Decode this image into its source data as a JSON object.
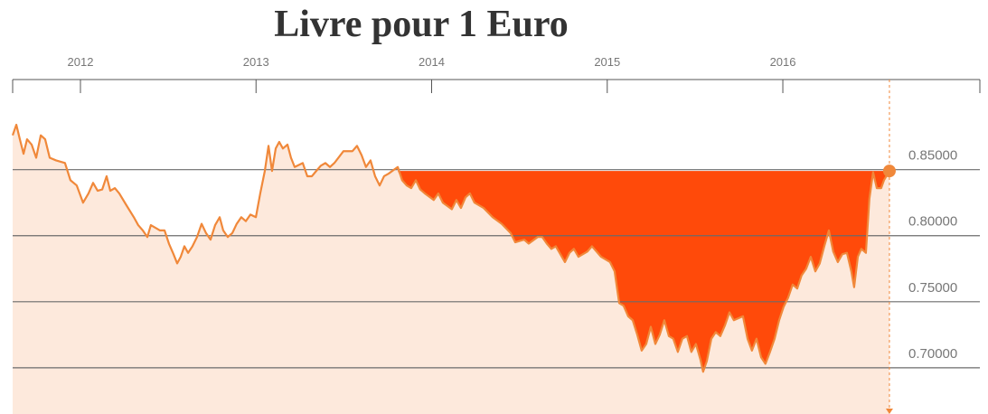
{
  "chart_data": {
    "type": "line",
    "title": "Livre pour 1 Euro",
    "x": [
      2011.614,
      2011.635,
      2011.655,
      2011.676,
      2011.696,
      2011.722,
      2011.748,
      2011.774,
      2011.799,
      2011.825,
      2011.861,
      2011.912,
      2011.943,
      2011.979,
      2012.015,
      2012.046,
      2012.072,
      2012.098,
      2012.124,
      2012.149,
      2012.17,
      2012.196,
      2012.221,
      2012.262,
      2012.304,
      2012.329,
      2012.355,
      2012.381,
      2012.401,
      2012.453,
      2012.479,
      2012.504,
      2012.53,
      2012.551,
      2012.571,
      2012.592,
      2012.613,
      2012.638,
      2012.664,
      2012.69,
      2012.715,
      2012.741,
      2012.767,
      2012.793,
      2012.813,
      2012.839,
      2012.865,
      2012.89,
      2012.916,
      2012.942,
      2012.968,
      2012.999,
      2013.024,
      2013.05,
      2013.071,
      2013.091,
      2013.112,
      2013.132,
      2013.153,
      2013.179,
      2013.199,
      2013.22,
      2013.266,
      2013.292,
      2013.318,
      2013.343,
      2013.369,
      2013.395,
      2013.421,
      2013.446,
      2013.498,
      2013.549,
      2013.575,
      2013.601,
      2013.626,
      2013.652,
      2013.678,
      2013.704,
      2013.729,
      2013.755,
      2013.807,
      2013.832,
      2013.858,
      2013.884,
      2013.91,
      2013.935,
      2013.961,
      2014.012,
      2014.038,
      2014.064,
      2014.115,
      2014.141,
      2014.167,
      2014.193,
      2014.218,
      2014.244,
      2014.296,
      2014.347,
      2014.399,
      2014.45,
      2014.476,
      2014.527,
      2014.553,
      2014.604,
      2014.63,
      2014.656,
      2014.682,
      2014.707,
      2014.733,
      2014.759,
      2014.785,
      2014.81,
      2014.836,
      2014.887,
      2014.913,
      2014.939,
      2014.965,
      2015.016,
      2015.042,
      2015.068,
      2015.093,
      2015.119,
      2015.145,
      2015.171,
      2015.196,
      2015.222,
      2015.248,
      2015.274,
      2015.299,
      2015.325,
      2015.351,
      2015.376,
      2015.402,
      2015.428,
      2015.454,
      2015.479,
      2015.505,
      2015.531,
      2015.546,
      2015.567,
      2015.593,
      2015.618,
      2015.644,
      2015.67,
      2015.696,
      2015.721,
      2015.773,
      2015.799,
      2015.824,
      2015.85,
      2015.876,
      2015.901,
      2015.927,
      2015.953,
      2015.979,
      2016.004,
      2016.03,
      2016.056,
      2016.082,
      2016.107,
      2016.133,
      2016.159,
      2016.185,
      2016.21,
      2016.236,
      2016.262,
      2016.287,
      2016.313,
      2016.339,
      2016.365,
      2016.39,
      2016.406,
      2016.427,
      2016.447,
      2016.473,
      2016.493,
      2016.514,
      2016.535,
      2016.56,
      2016.576,
      2016.607
    ],
    "values": [
      0.876,
      0.884,
      0.873,
      0.862,
      0.873,
      0.869,
      0.859,
      0.876,
      0.873,
      0.859,
      0.857,
      0.855,
      0.842,
      0.838,
      0.825,
      0.832,
      0.84,
      0.834,
      0.835,
      0.845,
      0.834,
      0.836,
      0.832,
      0.823,
      0.814,
      0.808,
      0.804,
      0.799,
      0.808,
      0.804,
      0.804,
      0.794,
      0.786,
      0.779,
      0.784,
      0.792,
      0.787,
      0.792,
      0.799,
      0.809,
      0.802,
      0.797,
      0.808,
      0.814,
      0.804,
      0.799,
      0.802,
      0.809,
      0.814,
      0.811,
      0.816,
      0.814,
      0.832,
      0.849,
      0.868,
      0.849,
      0.866,
      0.871,
      0.866,
      0.869,
      0.859,
      0.852,
      0.855,
      0.845,
      0.845,
      0.849,
      0.853,
      0.855,
      0.852,
      0.855,
      0.864,
      0.864,
      0.868,
      0.861,
      0.852,
      0.857,
      0.845,
      0.838,
      0.845,
      0.847,
      0.852,
      0.842,
      0.838,
      0.836,
      0.842,
      0.835,
      0.832,
      0.827,
      0.832,
      0.825,
      0.82,
      0.827,
      0.821,
      0.829,
      0.832,
      0.825,
      0.821,
      0.814,
      0.809,
      0.802,
      0.795,
      0.797,
      0.794,
      0.799,
      0.799,
      0.794,
      0.79,
      0.792,
      0.786,
      0.78,
      0.787,
      0.79,
      0.784,
      0.788,
      0.792,
      0.788,
      0.784,
      0.78,
      0.773,
      0.749,
      0.747,
      0.739,
      0.736,
      0.725,
      0.713,
      0.718,
      0.731,
      0.718,
      0.725,
      0.736,
      0.724,
      0.722,
      0.712,
      0.722,
      0.724,
      0.712,
      0.718,
      0.706,
      0.697,
      0.705,
      0.722,
      0.727,
      0.724,
      0.732,
      0.742,
      0.736,
      0.739,
      0.722,
      0.713,
      0.722,
      0.708,
      0.703,
      0.712,
      0.722,
      0.736,
      0.746,
      0.753,
      0.763,
      0.76,
      0.77,
      0.775,
      0.784,
      0.773,
      0.779,
      0.792,
      0.804,
      0.788,
      0.78,
      0.786,
      0.787,
      0.773,
      0.761,
      0.784,
      0.79,
      0.787,
      0.828,
      0.848,
      0.836,
      0.836,
      0.842,
      0.849
    ],
    "xlim": [
      2011.614,
      2017.122
    ],
    "xticks": [
      2012,
      2013,
      2014,
      2015,
      2016
    ],
    "ylim": [
      0.665,
      0.91
    ],
    "yticks": [
      {
        "value": 0.7,
        "label": "0.70000"
      },
      {
        "value": 0.75,
        "label": "0.75000"
      },
      {
        "value": 0.8,
        "label": "0.80000"
      },
      {
        "value": 0.85,
        "label": "0.85000"
      }
    ],
    "grid": true,
    "color": "#f0883a",
    "fill_color": "#fde9dc",
    "highlight_color": "#ff4a0a"
  }
}
